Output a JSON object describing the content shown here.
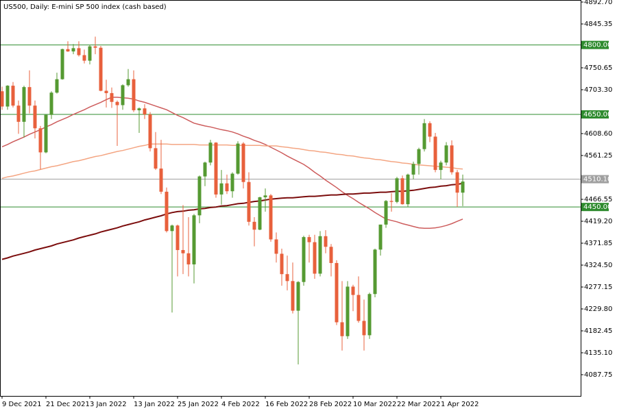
{
  "chart_data": {
    "type": "candlestick",
    "title": "US500, Daily:  E-mini SP 500 index (cash based)",
    "categories": [
      "9 Dec 2021",
      null,
      null,
      null,
      null,
      null,
      null,
      null,
      "21 Dec 2021",
      null,
      null,
      null,
      null,
      null,
      null,
      null,
      "3 Jan 2022",
      null,
      null,
      null,
      null,
      null,
      null,
      null,
      "13 Jan 2022",
      null,
      null,
      null,
      null,
      null,
      null,
      null,
      "25 Jan 2022",
      null,
      null,
      null,
      null,
      null,
      null,
      null,
      "4 Feb 2022",
      null,
      null,
      null,
      null,
      null,
      null,
      null,
      "16 Feb 2022",
      null,
      null,
      null,
      null,
      null,
      null,
      null,
      "28 Feb 2022",
      null,
      null,
      null,
      null,
      null,
      null,
      null,
      "10 Mar 2022",
      null,
      null,
      null,
      null,
      null,
      null,
      null,
      "22 Mar 2022",
      null,
      null,
      null,
      null,
      null,
      null,
      null,
      "1 Apr 2022",
      null,
      null,
      null,
      null
    ],
    "open": [
      4700,
      4667,
      4712,
      4669,
      4634,
      4709,
      4669,
      4620,
      4568,
      4649,
      4697,
      4726,
      4791,
      4786,
      4793,
      4778,
      4766,
      4797,
      4794,
      4701,
      4696,
      4677,
      4670,
      4713,
      4726,
      4659,
      4663,
      4650,
      4577,
      4533,
      4483,
      4398,
      4410,
      4357,
      4350,
      4326,
      4432,
      4516,
      4546,
      4589,
      4477,
      4501,
      4484,
      4522,
      4587,
      4504,
      4418,
      4401,
      4471,
      4475,
      4380,
      4349,
      4305,
      4290,
      4226,
      4288,
      4385,
      4374,
      4306,
      4387,
      4364,
      4329,
      4201,
      4171,
      4278,
      4260,
      4204,
      4173,
      4262,
      4358,
      4412,
      4463,
      4461,
      4512,
      4456,
      4520,
      4543,
      4575,
      4631,
      4602,
      4530,
      4546,
      4583,
      4525,
      4481
    ],
    "high": [
      4710,
      4713,
      4720,
      4680,
      4712,
      4745,
      4680,
      4625,
      4650,
      4700,
      4740,
      4792,
      4808,
      4802,
      4808,
      4790,
      4800,
      4818,
      4798,
      4725,
      4708,
      4680,
      4715,
      4748,
      4745,
      4665,
      4672,
      4655,
      4612,
      4595,
      4492,
      4412,
      4412,
      4454,
      4428,
      4435,
      4518,
      4548,
      4595,
      4590,
      4530,
      4520,
      4525,
      4592,
      4590,
      4525,
      4428,
      4472,
      4490,
      4478,
      4395,
      4360,
      4345,
      4330,
      4290,
      4388,
      4390,
      4390,
      4398,
      4400,
      4370,
      4335,
      4290,
      4290,
      4282,
      4300,
      4250,
      4265,
      4360,
      4412,
      4465,
      4480,
      4515,
      4518,
      4522,
      4548,
      4578,
      4640,
      4635,
      4610,
      4550,
      4590,
      4594,
      4530,
      4520
    ],
    "low": [
      4660,
      4660,
      4665,
      4608,
      4600,
      4652,
      4598,
      4531,
      4566,
      4640,
      4695,
      4725,
      4785,
      4780,
      4775,
      4760,
      4758,
      4780,
      4700,
      4665,
      4664,
      4582,
      4660,
      4710,
      4655,
      4610,
      4640,
      4570,
      4530,
      4478,
      4395,
      4222,
      4300,
      4305,
      4300,
      4285,
      4415,
      4495,
      4540,
      4470,
      4455,
      4478,
      4470,
      4520,
      4490,
      4410,
      4365,
      4400,
      4440,
      4375,
      4330,
      4280,
      4270,
      4220,
      4110,
      4280,
      4330,
      4295,
      4300,
      4350,
      4300,
      4195,
      4140,
      4165,
      4225,
      4200,
      4140,
      4165,
      4255,
      4345,
      4405,
      4440,
      4458,
      4455,
      4450,
      4510,
      4520,
      4570,
      4590,
      4525,
      4510,
      4540,
      4520,
      4450,
      4452
    ],
    "close": [
      4667,
      4712,
      4669,
      4634,
      4709,
      4669,
      4620,
      4568,
      4649,
      4697,
      4726,
      4791,
      4786,
      4793,
      4778,
      4766,
      4797,
      4794,
      4701,
      4696,
      4677,
      4670,
      4713,
      4726,
      4659,
      4663,
      4650,
      4577,
      4533,
      4483,
      4398,
      4410,
      4357,
      4350,
      4326,
      4432,
      4516,
      4546,
      4589,
      4477,
      4501,
      4484,
      4522,
      4587,
      4504,
      4418,
      4401,
      4471,
      4475,
      4380,
      4349,
      4305,
      4290,
      4226,
      4288,
      4385,
      4374,
      4306,
      4387,
      4364,
      4329,
      4201,
      4171,
      4278,
      4260,
      4204,
      4173,
      4262,
      4358,
      4412,
      4463,
      4461,
      4512,
      4456,
      4520,
      4543,
      4575,
      4631,
      4602,
      4530,
      4546,
      4583,
      4525,
      4481,
      4505
    ],
    "up_color": "#559a32",
    "down_color": "#e8603c",
    "series": [
      {
        "color": "#cd5c5c",
        "values": [
          4580,
          4585,
          4591,
          4596,
          4601,
          4607,
          4612,
          4617,
          4623,
          4628,
          4634,
          4639,
          4644,
          4650,
          4655,
          4660,
          4666,
          4671,
          4676,
          4682,
          4687,
          4687,
          4686,
          4685,
          4683,
          4679,
          4676,
          4672,
          4668,
          4664,
          4660,
          4654,
          4648,
          4643,
          4637,
          4631,
          4628,
          4625,
          4623,
          4620,
          4617,
          4615,
          4612,
          4608,
          4603,
          4599,
          4594,
          4590,
          4585,
          4579,
          4573,
          4567,
          4560,
          4554,
          4548,
          4542,
          4534,
          4525,
          4517,
          4508,
          4500,
          4492,
          4483,
          4475,
          4468,
          4460,
          4453,
          4446,
          4438,
          4431,
          4424,
          4421,
          4418,
          4414,
          4411,
          4408,
          4405,
          4404,
          4404,
          4405,
          4407,
          4410,
          4414,
          4419,
          4424
        ]
      },
      {
        "color": "#f4a582",
        "values": [
          4512,
          4515,
          4517,
          4520,
          4523,
          4526,
          4528,
          4531,
          4534,
          4537,
          4539,
          4542,
          4545,
          4548,
          4550,
          4553,
          4556,
          4559,
          4561,
          4564,
          4567,
          4570,
          4572,
          4575,
          4578,
          4581,
          4583,
          4586,
          4586,
          4586,
          4586,
          4585,
          4585,
          4585,
          4585,
          4585,
          4584,
          4584,
          4584,
          4584,
          4584,
          4584,
          4583,
          4583,
          4583,
          4583,
          4583,
          4583,
          4582,
          4582,
          4582,
          4580,
          4579,
          4577,
          4576,
          4574,
          4572,
          4571,
          4569,
          4568,
          4566,
          4564,
          4563,
          4561,
          4560,
          4558,
          4556,
          4555,
          4553,
          4552,
          4550,
          4548,
          4547,
          4545,
          4544,
          4542,
          4541,
          4540,
          4539,
          4538,
          4537,
          4536,
          4535,
          4533,
          4532
        ]
      },
      {
        "color": "#7b0c0c",
        "values": [
          4337,
          4340,
          4344,
          4347,
          4350,
          4353,
          4357,
          4360,
          4363,
          4366,
          4370,
          4373,
          4376,
          4379,
          4383,
          4386,
          4389,
          4392,
          4396,
          4399,
          4402,
          4405,
          4409,
          4412,
          4415,
          4418,
          4422,
          4425,
          4428,
          4431,
          4435,
          4438,
          4440,
          4441,
          4443,
          4444,
          4446,
          4447,
          4449,
          4450,
          4452,
          4453,
          4455,
          4457,
          4458,
          4460,
          4462,
          4463,
          4465,
          4467,
          4468,
          4469,
          4470,
          4470,
          4471,
          4472,
          4473,
          4473,
          4474,
          4475,
          4476,
          4476,
          4477,
          4478,
          4478,
          4479,
          4480,
          4480,
          4481,
          4482,
          4482,
          4483,
          4484,
          4484,
          4485,
          4486,
          4488,
          4490,
          4492,
          4493,
          4495,
          4496,
          4498,
          4499,
          4501
        ]
      }
    ],
    "levels": [
      {
        "value": 4800,
        "label": "4800.00",
        "color": "#2e8b2e"
      },
      {
        "value": 4650,
        "label": "4650.00",
        "color": "#2e8b2e"
      },
      {
        "value": 4510.1,
        "label": "4510.10",
        "color": "#a0a0a0"
      },
      {
        "value": 4450,
        "label": "4450.00",
        "color": "#2e8b2e"
      }
    ],
    "ylim": [
      4041.9,
      4897.1
    ],
    "yticks": [
      {
        "value": 4892.7,
        "label": "4892.70"
      },
      {
        "value": 4845.35,
        "label": "4845.35"
      },
      {
        "value": 4750.65,
        "label": "4750.65"
      },
      {
        "value": 4703.3,
        "label": "4703.30"
      },
      {
        "value": 4608.6,
        "label": "4608.60"
      },
      {
        "value": 4561.25,
        "label": "4561.25"
      },
      {
        "value": 4466.55,
        "label": "4466.55"
      },
      {
        "value": 4419.2,
        "label": "4419.20"
      },
      {
        "value": 4371.85,
        "label": "4371.85"
      },
      {
        "value": 4324.5,
        "label": "4324.50"
      },
      {
        "value": 4277.15,
        "label": "4277.15"
      },
      {
        "value": 4229.8,
        "label": "4229.80"
      },
      {
        "value": 4182.45,
        "label": "4182.45"
      },
      {
        "value": 4135.1,
        "label": "4135.10"
      },
      {
        "value": 4087.75,
        "label": "4087.75"
      }
    ]
  }
}
